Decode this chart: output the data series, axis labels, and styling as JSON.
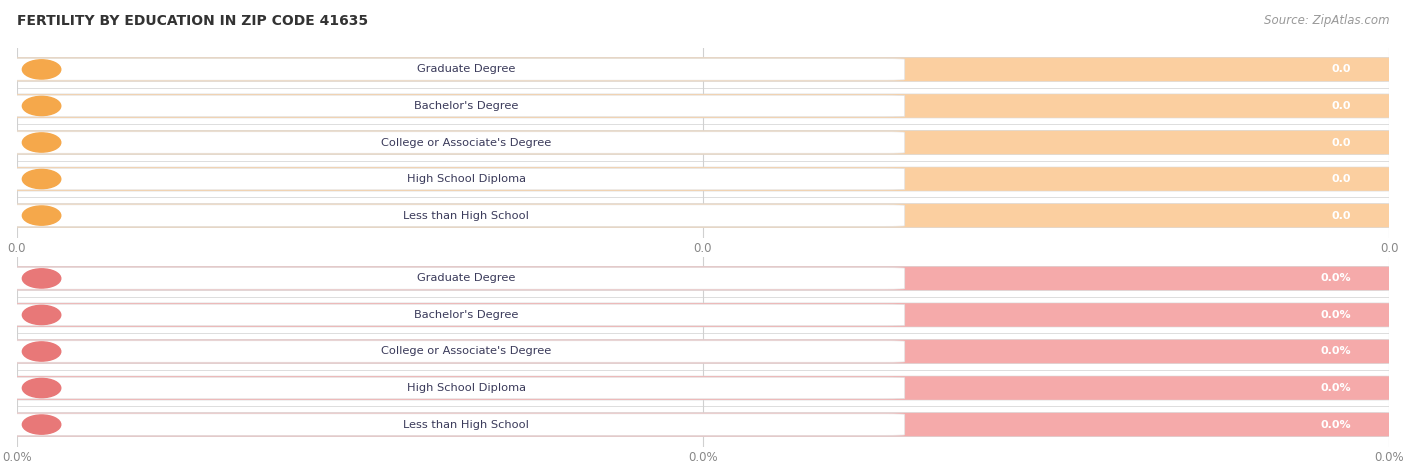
{
  "title": "FERTILITY BY EDUCATION IN ZIP CODE 41635",
  "source_text": "Source: ZipAtlas.com",
  "categories": [
    "Less than High School",
    "High School Diploma",
    "College or Associate's Degree",
    "Bachelor's Degree",
    "Graduate Degree"
  ],
  "top_values": [
    0.0,
    0.0,
    0.0,
    0.0,
    0.0
  ],
  "bottom_values": [
    0.0,
    0.0,
    0.0,
    0.0,
    0.0
  ],
  "top_bar_color": "#FBCFA0",
  "top_circle_color": "#F5A84B",
  "top_value_color": "#ffffff",
  "top_label_color": "#3a3a5a",
  "bottom_bar_color": "#F5AAAA",
  "bottom_circle_color": "#E87878",
  "bottom_value_color": "#ffffff",
  "bottom_label_color": "#3a3a5a",
  "bar_outer_color": "#e8e8e8",
  "bar_outer_edge": "#d8d8d8",
  "white_pill_color": "#ffffff",
  "grid_line_color": "#d0d0d0",
  "tick_color": "#888888",
  "title_color": "#333333",
  "source_color": "#999999",
  "bg_color": "#ffffff",
  "top_xticklabels": [
    "0.0",
    "0.0",
    "0.0"
  ],
  "bottom_xticklabels": [
    "0.0%",
    "0.0%",
    "0.0%"
  ]
}
